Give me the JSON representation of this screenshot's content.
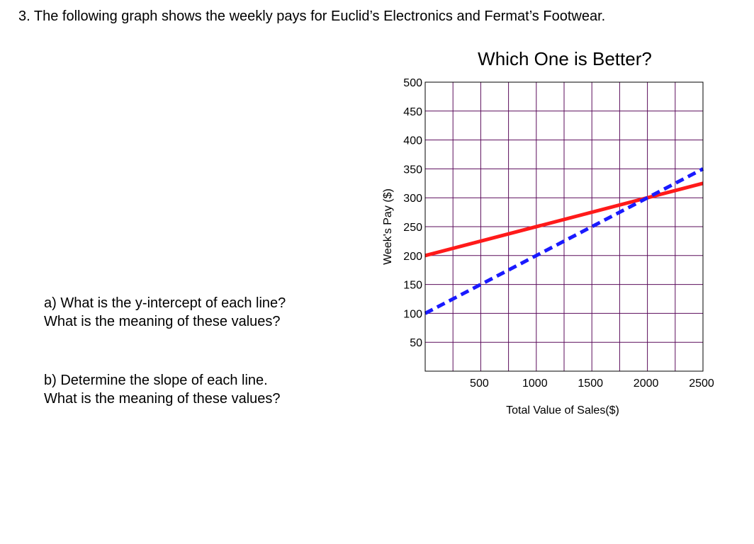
{
  "question": {
    "heading": "3. The following graph shows the weekly pays for Euclid’s Electronics and Fermat’s Footwear."
  },
  "parts": {
    "a": {
      "line1": "a)  What is the y-intercept of each line?",
      "line2": "What is the meaning of these values?"
    },
    "b": {
      "line1": "b)  Determine the slope of each line.",
      "line2": "What is the meaning of these values?"
    }
  },
  "chart_data": {
    "type": "line",
    "title": "Which One is Better?",
    "xlabel": "Total Value of Sales($)",
    "ylabel": "Week's Pay ($)",
    "xlim": [
      0,
      2500
    ],
    "ylim": [
      0,
      500
    ],
    "x_grid_step": 250,
    "y_grid_step": 50,
    "x_ticks": [
      500,
      1000,
      1500,
      2000,
      2500
    ],
    "y_ticks": [
      50,
      100,
      150,
      200,
      250,
      300,
      350,
      400,
      450,
      500
    ],
    "grid": true,
    "series": [
      {
        "style": "solid",
        "color": "#ff1a1a",
        "x": [
          0,
          2500
        ],
        "y": [
          200,
          325
        ]
      },
      {
        "style": "dashed",
        "color": "#1a1aff",
        "x": [
          0,
          2500
        ],
        "y": [
          100,
          350
        ]
      }
    ]
  }
}
